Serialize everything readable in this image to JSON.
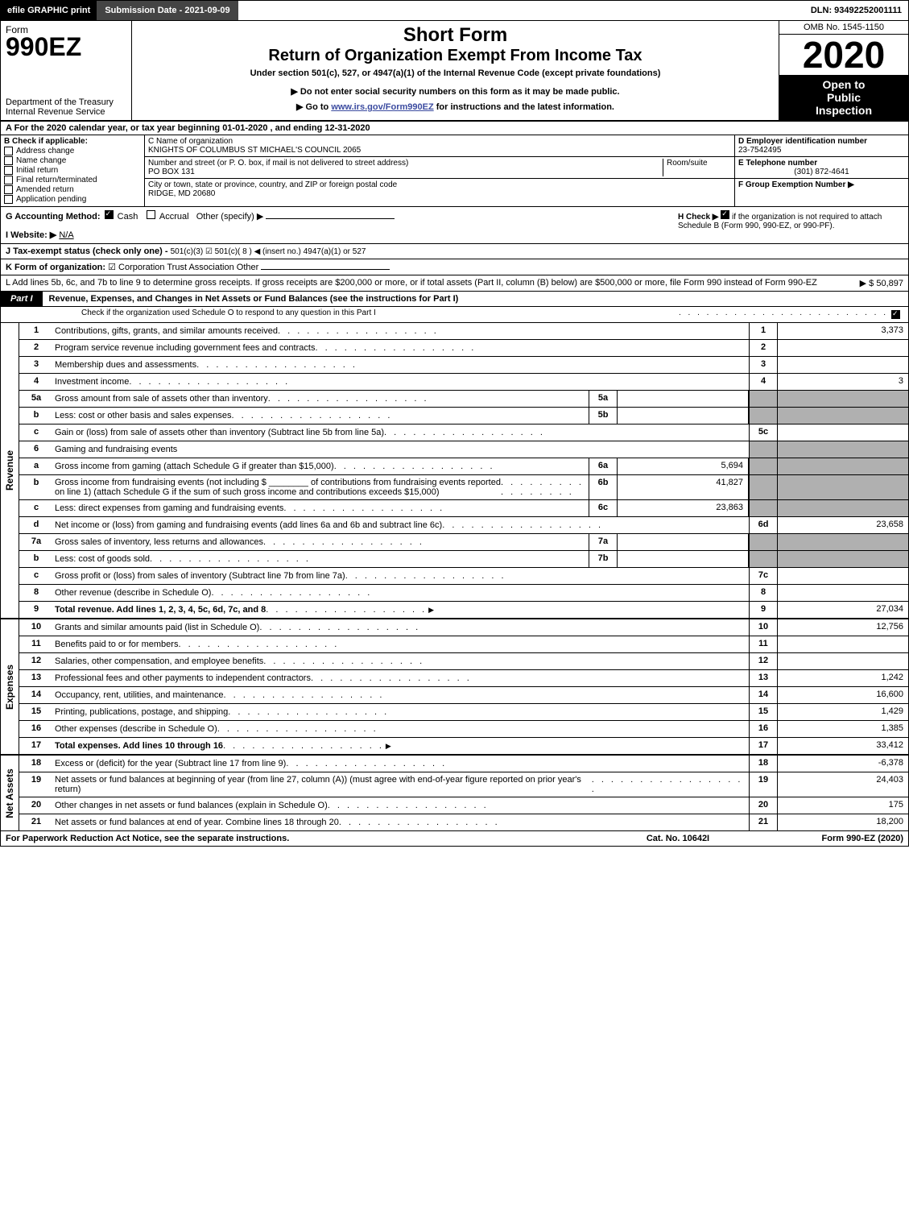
{
  "topbar": {
    "efile": "efile GRAPHIC",
    "print": "print",
    "submission_label": "Submission Date - 2021-09-09",
    "dln": "DLN: 93492252001111"
  },
  "header": {
    "form_label": "Form",
    "form_number": "990EZ",
    "dept1": "Department of the Treasury",
    "dept2": "Internal Revenue Service",
    "short_form": "Short Form",
    "return_title": "Return of Organization Exempt From Income Tax",
    "subtitle": "Under section 501(c), 527, or 4947(a)(1) of the Internal Revenue Code (except private foundations)",
    "notice": "▶ Do not enter social security numbers on this form as it may be made public.",
    "goto_prefix": "▶ Go to ",
    "goto_link": "www.irs.gov/Form990EZ",
    "goto_suffix": " for instructions and the latest information.",
    "omb": "OMB No. 1545-1150",
    "year": "2020",
    "open1": "Open to",
    "open2": "Public",
    "open3": "Inspection"
  },
  "section_a": {
    "tax_year": "A For the 2020 calendar year, or tax year beginning 01-01-2020 , and ending 12-31-2020"
  },
  "section_b": {
    "title": "B  Check if applicable:",
    "items": [
      "Address change",
      "Name change",
      "Initial return",
      "Final return/terminated",
      "Amended return",
      "Application pending"
    ]
  },
  "section_c": {
    "label_name": "C Name of organization",
    "org_name": "KNIGHTS OF COLUMBUS ST MICHAEL'S COUNCIL 2065",
    "label_street": "Number and street (or P. O. box, if mail is not delivered to street address)",
    "room_label": "Room/suite",
    "street": "PO BOX 131",
    "label_city": "City or town, state or province, country, and ZIP or foreign postal code",
    "city": "RIDGE, MD  20680"
  },
  "section_d": {
    "label": "D Employer identification number",
    "ein": "23-7542495",
    "tel_label": "E Telephone number",
    "tel": "(301) 872-4641",
    "group_label": "F Group Exemption Number  ▶"
  },
  "section_g": {
    "label": "G Accounting Method:",
    "cash": "Cash",
    "accrual": "Accrual",
    "other": "Other (specify) ▶",
    "website_label": "I Website: ▶",
    "website": "N/A",
    "h_label": "H  Check ▶",
    "h_text": "if the organization is not required to attach Schedule B (Form 990, 990-EZ, or 990-PF)."
  },
  "section_j": {
    "label": "J Tax-exempt status (check only one) -",
    "opts": "501(c)(3)  ☑ 501(c)( 8 ) ◀ (insert no.)   4947(a)(1) or   527"
  },
  "section_k": {
    "label": "K Form of organization:",
    "opts": "☑ Corporation    Trust    Association    Other"
  },
  "section_l": {
    "text": "L Add lines 5b, 6c, and 7b to line 9 to determine gross receipts. If gross receipts are $200,000 or more, or if total assets (Part II, column (B) below) are $500,000 or more, file Form 990 instead of Form 990-EZ",
    "amount": "▶ $ 50,897"
  },
  "part1": {
    "label": "Part I",
    "title": "Revenue, Expenses, and Changes in Net Assets or Fund Balances (see the instructions for Part I)",
    "subtitle": "Check if the organization used Schedule O to respond to any question in this Part I"
  },
  "sides": {
    "revenue": "Revenue",
    "expenses": "Expenses",
    "netassets": "Net Assets"
  },
  "lines": {
    "l1": {
      "n": "1",
      "d": "Contributions, gifts, grants, and similar amounts received",
      "r": "1",
      "a": "3,373"
    },
    "l2": {
      "n": "2",
      "d": "Program service revenue including government fees and contracts",
      "r": "2",
      "a": ""
    },
    "l3": {
      "n": "3",
      "d": "Membership dues and assessments",
      "r": "3",
      "a": ""
    },
    "l4": {
      "n": "4",
      "d": "Investment income",
      "r": "4",
      "a": "3"
    },
    "l5a": {
      "n": "5a",
      "d": "Gross amount from sale of assets other than inventory",
      "mn": "5a",
      "ma": ""
    },
    "l5b": {
      "n": "b",
      "d": "Less: cost or other basis and sales expenses",
      "mn": "5b",
      "ma": ""
    },
    "l5c": {
      "n": "c",
      "d": "Gain or (loss) from sale of assets other than inventory (Subtract line 5b from line 5a)",
      "r": "5c",
      "a": ""
    },
    "l6": {
      "n": "6",
      "d": "Gaming and fundraising events"
    },
    "l6a": {
      "n": "a",
      "d": "Gross income from gaming (attach Schedule G if greater than $15,000)",
      "mn": "6a",
      "ma": "5,694"
    },
    "l6b": {
      "n": "b",
      "d": "Gross income from fundraising events (not including $ ________ of contributions from fundraising events reported on line 1) (attach Schedule G if the sum of such gross income and contributions exceeds $15,000)",
      "mn": "6b",
      "ma": "41,827"
    },
    "l6c": {
      "n": "c",
      "d": "Less: direct expenses from gaming and fundraising events",
      "mn": "6c",
      "ma": "23,863"
    },
    "l6d": {
      "n": "d",
      "d": "Net income or (loss) from gaming and fundraising events (add lines 6a and 6b and subtract line 6c)",
      "r": "6d",
      "a": "23,658"
    },
    "l7a": {
      "n": "7a",
      "d": "Gross sales of inventory, less returns and allowances",
      "mn": "7a",
      "ma": ""
    },
    "l7b": {
      "n": "b",
      "d": "Less: cost of goods sold",
      "mn": "7b",
      "ma": ""
    },
    "l7c": {
      "n": "c",
      "d": "Gross profit or (loss) from sales of inventory (Subtract line 7b from line 7a)",
      "r": "7c",
      "a": ""
    },
    "l8": {
      "n": "8",
      "d": "Other revenue (describe in Schedule O)",
      "r": "8",
      "a": ""
    },
    "l9": {
      "n": "9",
      "d": "Total revenue. Add lines 1, 2, 3, 4, 5c, 6d, 7c, and 8",
      "r": "9",
      "a": "27,034",
      "arrow": true,
      "bold": true
    },
    "l10": {
      "n": "10",
      "d": "Grants and similar amounts paid (list in Schedule O)",
      "r": "10",
      "a": "12,756"
    },
    "l11": {
      "n": "11",
      "d": "Benefits paid to or for members",
      "r": "11",
      "a": ""
    },
    "l12": {
      "n": "12",
      "d": "Salaries, other compensation, and employee benefits",
      "r": "12",
      "a": ""
    },
    "l13": {
      "n": "13",
      "d": "Professional fees and other payments to independent contractors",
      "r": "13",
      "a": "1,242"
    },
    "l14": {
      "n": "14",
      "d": "Occupancy, rent, utilities, and maintenance",
      "r": "14",
      "a": "16,600"
    },
    "l15": {
      "n": "15",
      "d": "Printing, publications, postage, and shipping",
      "r": "15",
      "a": "1,429"
    },
    "l16": {
      "n": "16",
      "d": "Other expenses (describe in Schedule O)",
      "r": "16",
      "a": "1,385"
    },
    "l17": {
      "n": "17",
      "d": "Total expenses. Add lines 10 through 16",
      "r": "17",
      "a": "33,412",
      "arrow": true,
      "bold": true
    },
    "l18": {
      "n": "18",
      "d": "Excess or (deficit) for the year (Subtract line 17 from line 9)",
      "r": "18",
      "a": "-6,378"
    },
    "l19": {
      "n": "19",
      "d": "Net assets or fund balances at beginning of year (from line 27, column (A)) (must agree with end-of-year figure reported on prior year's return)",
      "r": "19",
      "a": "24,403"
    },
    "l20": {
      "n": "20",
      "d": "Other changes in net assets or fund balances (explain in Schedule O)",
      "r": "20",
      "a": "175"
    },
    "l21": {
      "n": "21",
      "d": "Net assets or fund balances at end of year. Combine lines 18 through 20",
      "r": "21",
      "a": "18,200"
    }
  },
  "footer": {
    "left": "For Paperwork Reduction Act Notice, see the separate instructions.",
    "mid": "Cat. No. 10642I",
    "right": "Form 990-EZ (2020)"
  },
  "colors": {
    "black": "#000000",
    "grey": "#b0b0b0",
    "darkgrey": "#444444",
    "link": "#3b4ba0"
  }
}
